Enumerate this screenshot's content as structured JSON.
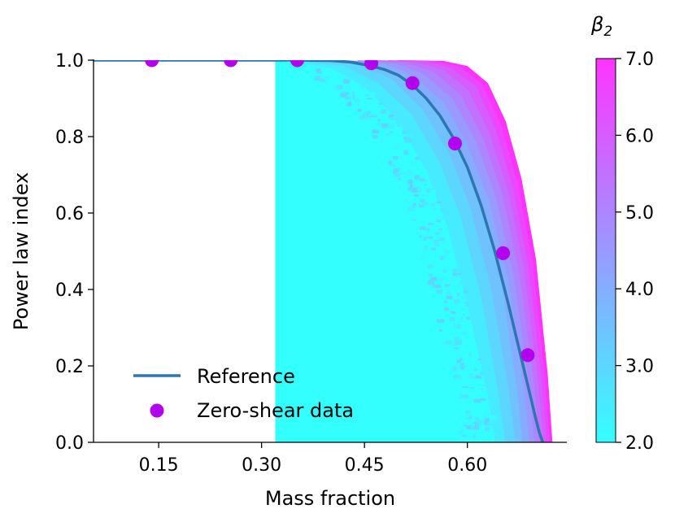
{
  "chart_data": {
    "type": "scatter",
    "xlabel": "Mass fraction",
    "ylabel": "Power law index",
    "xlim": [
      0.055,
      0.745
    ],
    "ylim": [
      0.0,
      1.0
    ],
    "xticks": [
      {
        "value": 0.15,
        "label": "0.15"
      },
      {
        "value": 0.3,
        "label": "0.30"
      },
      {
        "value": 0.45,
        "label": "0.45"
      },
      {
        "value": 0.6,
        "label": "0.60"
      }
    ],
    "yticks": [
      {
        "value": 0.0,
        "label": "0.0"
      },
      {
        "value": 0.2,
        "label": "0.2"
      },
      {
        "value": 0.4,
        "label": "0.4"
      },
      {
        "value": 0.6,
        "label": "0.6"
      },
      {
        "value": 0.8,
        "label": "0.8"
      },
      {
        "value": 1.0,
        "label": "1.0"
      }
    ],
    "grid": false,
    "legend_position": "lower-left",
    "series": [
      {
        "name": "Reference",
        "kind": "line",
        "color": "#2b77b0",
        "x": [
          0.055,
          0.1,
          0.15,
          0.2,
          0.25,
          0.3,
          0.35,
          0.4,
          0.43,
          0.46,
          0.48,
          0.5,
          0.52,
          0.54,
          0.56,
          0.58,
          0.6,
          0.62,
          0.64,
          0.66,
          0.67,
          0.68,
          0.69,
          0.7,
          0.705,
          0.71
        ],
        "y": [
          1.0,
          1.0,
          1.0,
          1.0,
          1.0,
          1.0,
          1.0,
          0.999,
          0.995,
          0.985,
          0.975,
          0.96,
          0.935,
          0.9,
          0.855,
          0.795,
          0.72,
          0.62,
          0.5,
          0.36,
          0.285,
          0.21,
          0.135,
          0.06,
          0.025,
          0.0
        ]
      },
      {
        "name": "Zero-shear data",
        "kind": "scatter",
        "color": "#b300ee",
        "x": [
          0.14,
          0.255,
          0.352,
          0.46,
          0.52,
          0.582,
          0.652,
          0.688
        ],
        "y": [
          1.0,
          1.0,
          1.0,
          0.992,
          0.94,
          0.782,
          0.495,
          0.228
        ]
      }
    ],
    "heatmap": {
      "variable": "β2",
      "colorbar_label": "β",
      "colorbar_label_sub": "2",
      "color_min": "#33ffff",
      "color_max": "#ff33ff",
      "vmin": 2.0,
      "vmax": 7.0,
      "cticks": [
        {
          "value": 2.0,
          "label": "2.0"
        },
        {
          "value": 3.0,
          "label": "3.0"
        },
        {
          "value": 4.0,
          "label": "4.0"
        },
        {
          "value": 5.0,
          "label": "5.0"
        },
        {
          "value": 6.0,
          "label": "6.0"
        },
        {
          "value": 7.0,
          "label": "7.0"
        }
      ],
      "bands": [
        {
          "beta": 2.0,
          "x": [
            0.32,
            0.4,
            0.45,
            0.5,
            0.54,
            0.57,
            0.6,
            0.63,
            0.64
          ],
          "y": [
            1.0,
            0.98,
            0.93,
            0.84,
            0.71,
            0.57,
            0.36,
            0.12,
            0.0
          ]
        },
        {
          "beta": 2.5,
          "x": [
            0.34,
            0.42,
            0.47,
            0.52,
            0.56,
            0.59,
            0.62,
            0.645,
            0.655
          ],
          "y": [
            1.0,
            0.985,
            0.94,
            0.855,
            0.73,
            0.59,
            0.38,
            0.13,
            0.0
          ]
        },
        {
          "beta": 3.0,
          "x": [
            0.36,
            0.44,
            0.49,
            0.535,
            0.575,
            0.605,
            0.635,
            0.66,
            0.67
          ],
          "y": [
            1.0,
            0.99,
            0.95,
            0.87,
            0.75,
            0.61,
            0.4,
            0.14,
            0.0
          ]
        },
        {
          "beta": 3.5,
          "x": [
            0.38,
            0.46,
            0.505,
            0.55,
            0.59,
            0.62,
            0.65,
            0.672,
            0.68
          ],
          "y": [
            1.0,
            0.99,
            0.955,
            0.88,
            0.76,
            0.62,
            0.41,
            0.14,
            0.0
          ]
        },
        {
          "beta": 4.0,
          "x": [
            0.4,
            0.48,
            0.52,
            0.565,
            0.6,
            0.632,
            0.66,
            0.682,
            0.69
          ],
          "y": [
            1.0,
            0.99,
            0.96,
            0.89,
            0.78,
            0.63,
            0.42,
            0.15,
            0.0
          ]
        },
        {
          "beta": 4.5,
          "x": [
            0.42,
            0.495,
            0.535,
            0.578,
            0.612,
            0.642,
            0.668,
            0.69,
            0.698
          ],
          "y": [
            1.0,
            0.992,
            0.965,
            0.9,
            0.79,
            0.64,
            0.43,
            0.15,
            0.0
          ]
        },
        {
          "beta": 5.0,
          "x": [
            0.44,
            0.51,
            0.55,
            0.59,
            0.622,
            0.651,
            0.676,
            0.697,
            0.705
          ],
          "y": [
            1.0,
            0.994,
            0.97,
            0.91,
            0.8,
            0.65,
            0.44,
            0.16,
            0.0
          ]
        },
        {
          "beta": 5.5,
          "x": [
            0.455,
            0.525,
            0.565,
            0.602,
            0.632,
            0.659,
            0.683,
            0.703,
            0.711
          ],
          "y": [
            1.0,
            0.995,
            0.974,
            0.92,
            0.81,
            0.66,
            0.45,
            0.16,
            0.0
          ]
        },
        {
          "beta": 6.0,
          "x": [
            0.47,
            0.54,
            0.578,
            0.613,
            0.641,
            0.666,
            0.689,
            0.708,
            0.716
          ],
          "y": [
            1.0,
            0.996,
            0.978,
            0.93,
            0.82,
            0.67,
            0.46,
            0.17,
            0.0
          ]
        },
        {
          "beta": 6.5,
          "x": [
            0.485,
            0.552,
            0.59,
            0.622,
            0.649,
            0.673,
            0.695,
            0.713,
            0.72
          ],
          "y": [
            1.0,
            0.997,
            0.982,
            0.935,
            0.83,
            0.68,
            0.47,
            0.17,
            0.0
          ]
        },
        {
          "beta": 7.0,
          "x": [
            0.5,
            0.565,
            0.6,
            0.63,
            0.656,
            0.679,
            0.7,
            0.717,
            0.724
          ],
          "y": [
            1.0,
            0.998,
            0.985,
            0.94,
            0.84,
            0.69,
            0.48,
            0.18,
            0.0
          ]
        }
      ]
    }
  }
}
